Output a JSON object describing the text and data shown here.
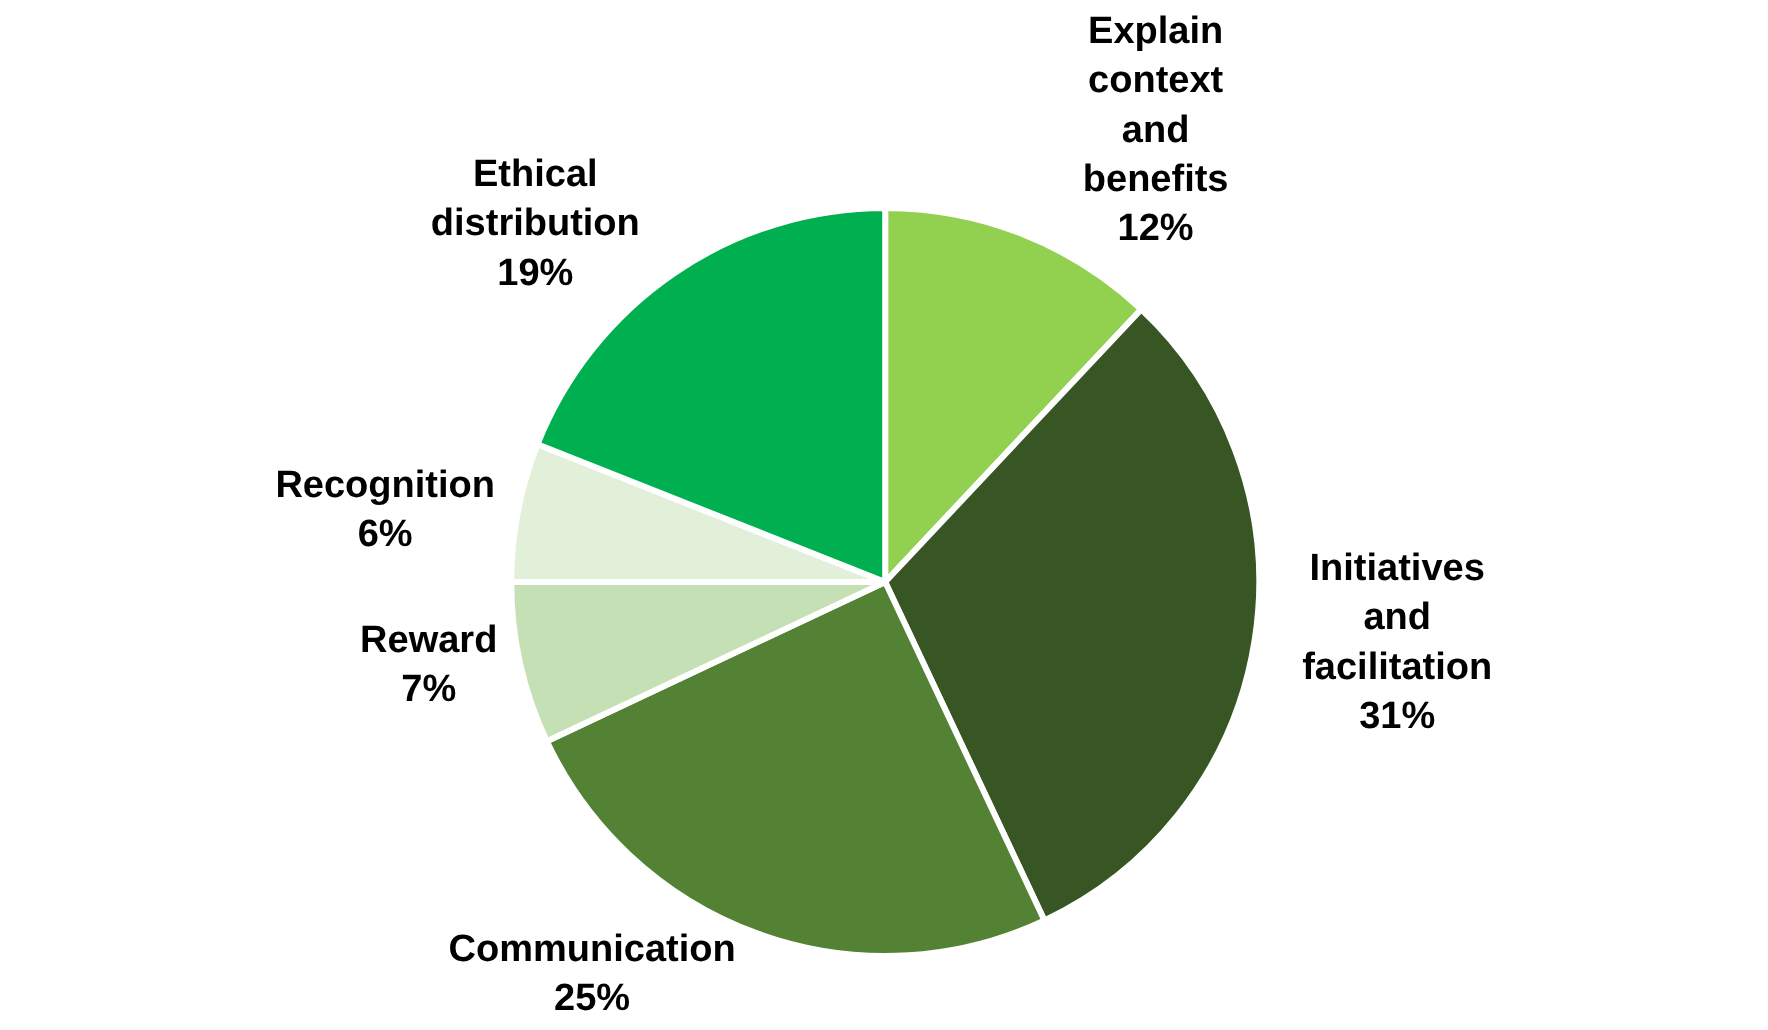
{
  "chart_data": {
    "type": "pie",
    "categories": [
      "Explain context and benefits",
      "Initiatives and facilitation",
      "Communication",
      "Reward",
      "Recognition",
      "Ethical distribution"
    ],
    "values": [
      12,
      31,
      25,
      7,
      6,
      19
    ],
    "value_labels": [
      "12%",
      "31%",
      "25%",
      "7%",
      "6%",
      "19%"
    ],
    "colors": [
      "#92d050",
      "#375623",
      "#548235",
      "#c5e0b4",
      "#e2f0d9",
      "#00b050"
    ],
    "legend": false
  }
}
